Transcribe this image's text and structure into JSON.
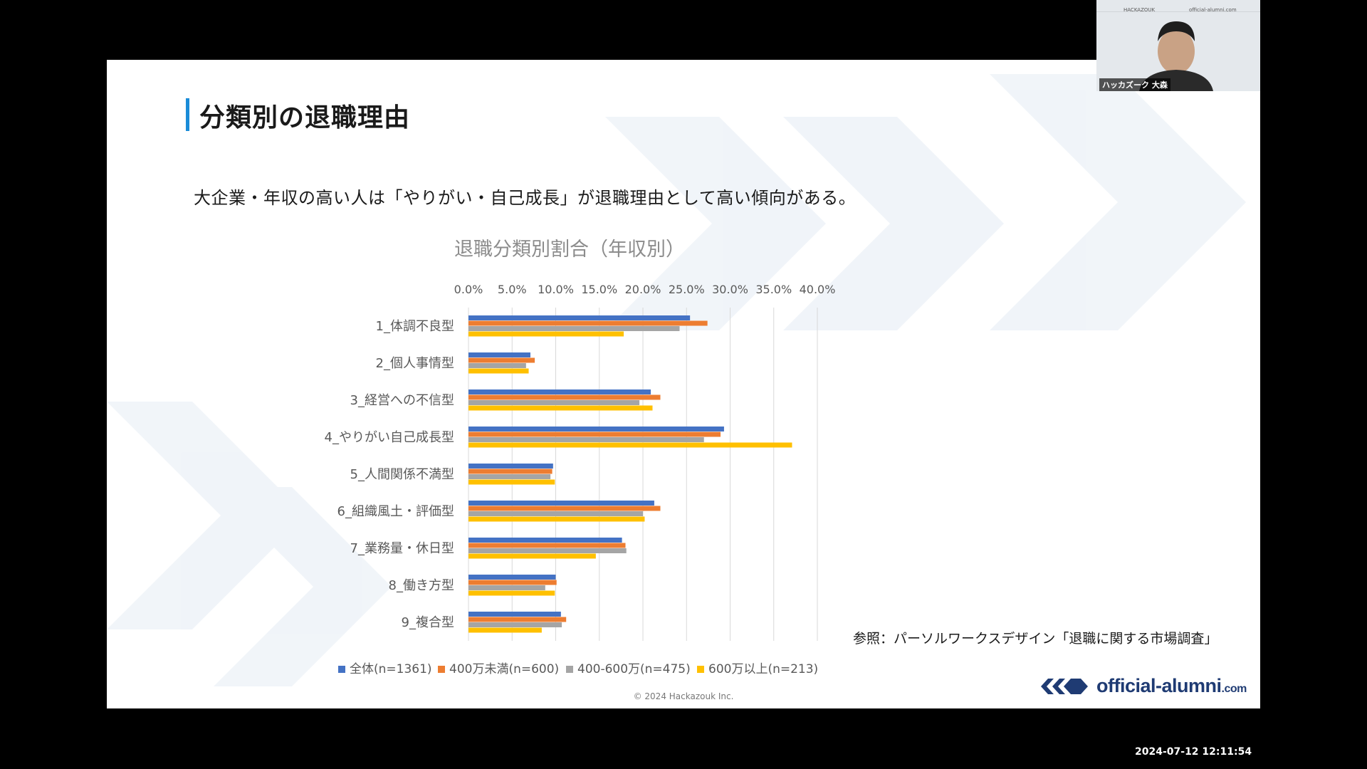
{
  "slide": {
    "title": "分類別の退職理由",
    "subtitle": "大企業・年収の高い人は「やりがい・自己成長」が退職理由として高い傾向がある。",
    "reference": "参照：パーソルワークスデザイン「退職に関する市場調査」",
    "copyright": "© 2024 Hackazouk Inc.",
    "logo_text": "official-alumni",
    "logo_suffix": ".com"
  },
  "webcam": {
    "header_left": "HACKAZOUK",
    "header_right": "official-alumni.com",
    "caption": "ハッカズーク 大森"
  },
  "timestamp": "2024-07-12  12:11:54",
  "colors": {
    "series": [
      "#4472c4",
      "#ed7d31",
      "#a5a5a5",
      "#ffc000"
    ],
    "title_accent": "#1a8cd8",
    "logo": "#1f3b73"
  },
  "chart_data": {
    "type": "bar",
    "orientation": "horizontal",
    "title": "退職分類別割合（年収別）",
    "categories": [
      "1_体調不良型",
      "2_個人事情型",
      "3_経営への不信型",
      "4_やりがい自己成長型",
      "5_人間関係不満型",
      "6_組織風土・評価型",
      "7_業務量・休日型",
      "8_働き方型",
      "9_複合型"
    ],
    "series": [
      {
        "name": "全体(n=1361)",
        "values": [
          25.4,
          7.1,
          20.9,
          29.3,
          9.7,
          21.3,
          17.6,
          10.0,
          10.6
        ]
      },
      {
        "name": "400万未満(n=600)",
        "values": [
          27.4,
          7.6,
          22.0,
          28.9,
          9.6,
          22.0,
          18.0,
          10.1,
          11.2
        ]
      },
      {
        "name": "400-600万(n=475)",
        "values": [
          24.2,
          6.6,
          19.6,
          27.0,
          9.4,
          20.0,
          18.1,
          8.8,
          10.7
        ]
      },
      {
        "name": "600万以上(n=213)",
        "values": [
          17.8,
          6.9,
          21.1,
          37.1,
          9.9,
          20.2,
          14.6,
          9.9,
          8.4
        ]
      }
    ],
    "xlim": [
      0,
      40
    ],
    "xticks": [
      "0.0%",
      "5.0%",
      "10.0%",
      "15.0%",
      "20.0%",
      "25.0%",
      "30.0%",
      "35.0%",
      "40.0%"
    ],
    "grid": true,
    "legend": "bottom"
  }
}
